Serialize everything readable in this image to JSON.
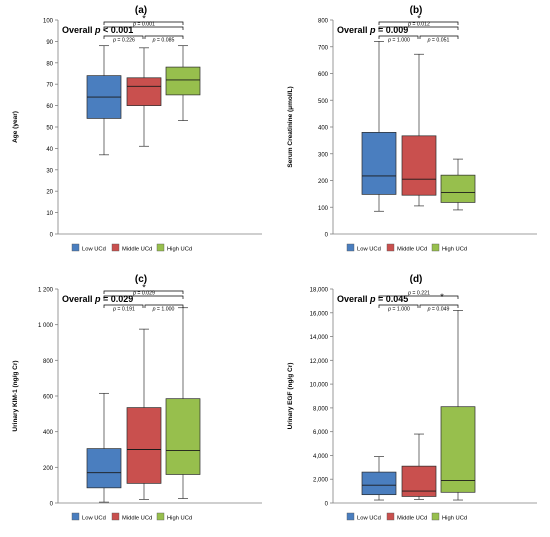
{
  "colors": {
    "low": "#4a7ebf",
    "middle": "#c9504e",
    "high": "#97bf4d",
    "axis": "#7f7f7f",
    "text": "#000000"
  },
  "legend": [
    "Low UCd",
    "Middle UCd",
    "High UCd"
  ],
  "chart_data": [
    {
      "type": "box",
      "panel_label": "(a)",
      "overall": {
        "prefix": "Overall ",
        "p_symbol": "p",
        "rest": " < 0.001"
      },
      "ylabel": "Age (year)",
      "ylim": [
        0,
        100
      ],
      "yticks": [
        0,
        10,
        20,
        30,
        40,
        50,
        60,
        70,
        80,
        90,
        100
      ],
      "ytick_labels": [
        "0",
        "10",
        "20",
        "30",
        "40",
        "50",
        "60",
        "70",
        "80",
        "90",
        "100"
      ],
      "categories": [
        "Low UCd",
        "Middle UCd",
        "High UCd"
      ],
      "boxes": [
        {
          "whisker_low": 37,
          "q1": 54,
          "median": 64,
          "q3": 74,
          "whisker_high": 88
        },
        {
          "whisker_low": 41,
          "q1": 60,
          "median": 69,
          "q3": 73,
          "whisker_high": 87
        },
        {
          "whisker_low": 53,
          "q1": 65,
          "median": 72,
          "q3": 78,
          "whisker_high": 88
        }
      ],
      "brackets": [
        {
          "type": "wide",
          "label": "*"
        },
        {
          "type": "upper",
          "label": "p = 0.001"
        },
        {
          "type": "left",
          "label": "p = 0.226"
        },
        {
          "type": "right",
          "label": "p = 0.085"
        }
      ]
    },
    {
      "type": "box",
      "panel_label": "(b)",
      "overall": {
        "prefix": "Overall ",
        "p_symbol": "p",
        "rest": " = 0.009"
      },
      "ylabel": "Serum Creatinine (μmol/L)",
      "ylim": [
        0,
        800
      ],
      "yticks": [
        0,
        100,
        200,
        300,
        400,
        500,
        600,
        700,
        800
      ],
      "ytick_labels": [
        "0",
        "100",
        "200",
        "300",
        "400",
        "500",
        "600",
        "700",
        "800"
      ],
      "categories": [
        "Low UCd",
        "Middle UCd",
        "High UCd"
      ],
      "boxes": [
        {
          "whisker_low": 85,
          "q1": 148,
          "median": 217,
          "q3": 380,
          "whisker_high": 720
        },
        {
          "whisker_low": 105,
          "q1": 145,
          "median": 205,
          "q3": 367,
          "whisker_high": 672
        },
        {
          "whisker_low": 90,
          "q1": 118,
          "median": 155,
          "q3": 220,
          "whisker_high": 280
        }
      ],
      "brackets": [
        {
          "type": "wide",
          "label": "*"
        },
        {
          "type": "upper",
          "label": "p = 0.012"
        },
        {
          "type": "left",
          "label": "p = 1.000"
        },
        {
          "type": "right",
          "label": "p = 0.051"
        }
      ]
    },
    {
      "type": "box",
      "panel_label": "(c)",
      "overall": {
        "prefix": "Overall ",
        "p_symbol": "p",
        "rest": " = 0.029"
      },
      "ylabel": "Urinary KIM-1 (ng/g Cr)",
      "ylim": [
        0,
        1200
      ],
      "yticks": [
        0,
        200,
        400,
        600,
        800,
        1000,
        1200
      ],
      "ytick_labels": [
        "0",
        "200",
        "400",
        "600",
        "800",
        "1 000",
        "1 200"
      ],
      "categories": [
        "Low UCd",
        "Middle UCd",
        "High UCd"
      ],
      "boxes": [
        {
          "whisker_low": 5,
          "q1": 85,
          "median": 170,
          "q3": 305,
          "whisker_high": 615
        },
        {
          "whisker_low": 20,
          "q1": 110,
          "median": 300,
          "q3": 535,
          "whisker_high": 975
        },
        {
          "whisker_low": 25,
          "q1": 160,
          "median": 295,
          "q3": 585,
          "whisker_high": 1095
        }
      ],
      "brackets": [
        {
          "type": "wide",
          "label": "*"
        },
        {
          "type": "upper",
          "label": "p = 0.029"
        },
        {
          "type": "left",
          "label": "p = 0.191"
        },
        {
          "type": "right",
          "label": "p = 1.000"
        }
      ]
    },
    {
      "type": "box",
      "panel_label": "(d)",
      "overall": {
        "prefix": "Overall ",
        "p_symbol": "p",
        "rest": " = 0.045"
      },
      "ylabel": "Urinary EGF (ng/g Cr)",
      "ylim": [
        0,
        18000
      ],
      "yticks": [
        0,
        2000,
        4000,
        6000,
        8000,
        10000,
        12000,
        14000,
        16000,
        18000
      ],
      "ytick_labels": [
        "0",
        "2,000",
        "4,000",
        "6,000",
        "8,000",
        "10,000",
        "12,000",
        "14,000",
        "16,000",
        "18,000"
      ],
      "categories": [
        "Low UCd",
        "Middle UCd",
        "High UCd"
      ],
      "boxes": [
        {
          "whisker_low": 250,
          "q1": 700,
          "median": 1500,
          "q3": 2600,
          "whisker_high": 3900
        },
        {
          "whisker_low": 300,
          "q1": 550,
          "median": 1000,
          "q3": 3100,
          "whisker_high": 5800
        },
        {
          "whisker_low": 250,
          "q1": 900,
          "median": 1900,
          "q3": 8100,
          "whisker_high": 16200
        }
      ],
      "brackets": [
        {
          "type": "upper",
          "label": "p = 0.221"
        },
        {
          "type": "star",
          "label": "*"
        },
        {
          "type": "left",
          "label": "p = 1.000"
        },
        {
          "type": "right",
          "label": "p = 0.049"
        }
      ]
    }
  ]
}
